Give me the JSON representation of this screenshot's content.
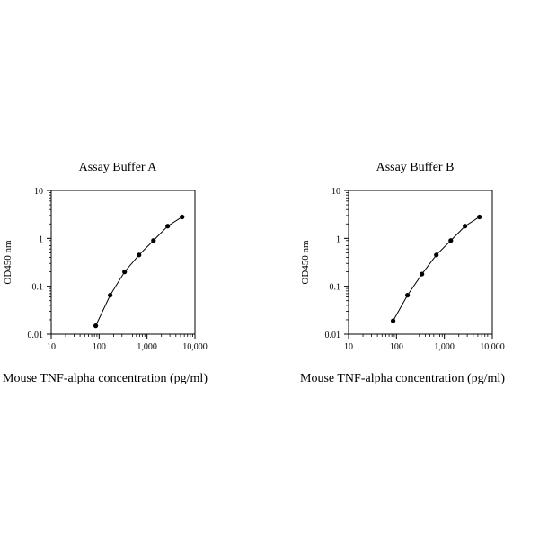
{
  "chart_data": [
    {
      "type": "line",
      "title": "Assay Buffer A",
      "xlabel": "Mouse TNF-alpha concentration (pg/ml)",
      "ylabel": "OD450 nm",
      "xscale": "log",
      "yscale": "log",
      "xlim": [
        10,
        10000
      ],
      "ylim": [
        0.01,
        10
      ],
      "x_tick_labels": [
        "10",
        "100",
        "1,000",
        "10,000"
      ],
      "y_tick_labels": [
        "0.01",
        "0.1",
        "1",
        "10"
      ],
      "grid": false,
      "marker": "circle",
      "series": [
        {
          "x": [
            85,
            170,
            340,
            680,
            1360,
            2700,
            5400
          ],
          "y": [
            0.015,
            0.065,
            0.2,
            0.45,
            0.9,
            1.8,
            2.8
          ]
        }
      ]
    },
    {
      "type": "line",
      "title": "Assay Buffer B",
      "xlabel": "Mouse TNF-alpha concentration (pg/ml)",
      "ylabel": "OD450 nm",
      "xscale": "log",
      "yscale": "log",
      "xlim": [
        10,
        10000
      ],
      "ylim": [
        0.01,
        10
      ],
      "x_tick_labels": [
        "10",
        "100",
        "1,000",
        "10,000"
      ],
      "y_tick_labels": [
        "0.01",
        "0.1",
        "1",
        "10"
      ],
      "grid": false,
      "marker": "circle",
      "series": [
        {
          "x": [
            85,
            170,
            340,
            680,
            1360,
            2700,
            5400
          ],
          "y": [
            0.019,
            0.065,
            0.18,
            0.45,
            0.9,
            1.8,
            2.8
          ]
        }
      ]
    }
  ],
  "colors": {
    "axis": "#000000",
    "line": "#000000",
    "marker": "#000000",
    "background": "#ffffff"
  }
}
